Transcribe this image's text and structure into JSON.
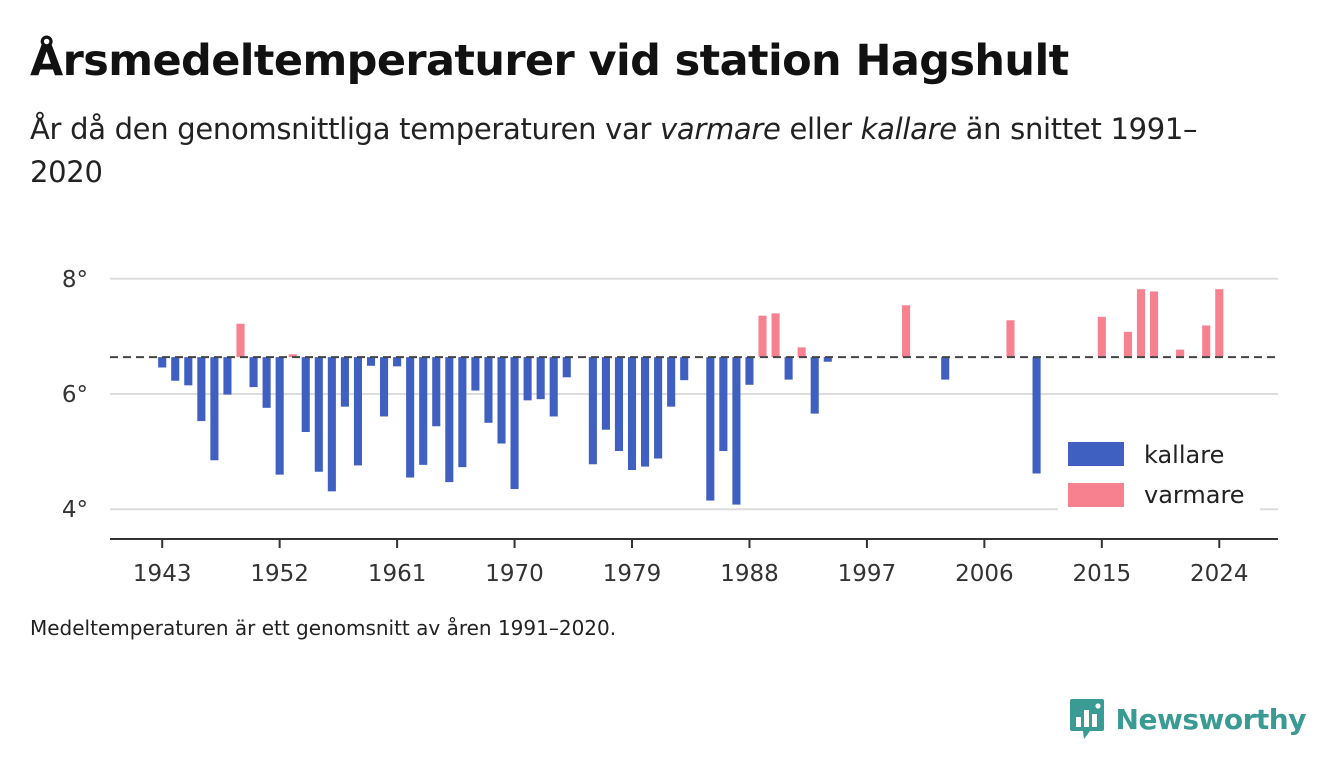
{
  "title_prefix": "Årsmedeltemperaturer vid station Hagshult",
  "subtitle": {
    "part1": "År då den genomsnittliga temperaturen var ",
    "warm_word": "varmare",
    "part2": " eller ",
    "cold_word": "kallare",
    "part3": " än snittet 1991–2020"
  },
  "footnote": "Medeltemperaturen är ett genomsnitt av åren 1991–2020.",
  "brand": "Newsworthy",
  "colors": {
    "cold": "#3f60c0",
    "warm": "#f7818f",
    "grid": "#dddddd",
    "brand": "#3a9a94"
  },
  "chart_data": {
    "type": "bar",
    "baseline": 6.64,
    "ylim": [
      3.5,
      8.5
    ],
    "yticks": [
      4,
      6,
      8
    ],
    "ytick_labels": [
      "4°",
      "6°",
      "8°"
    ],
    "xlim": [
      1939,
      2028.5
    ],
    "xticks": [
      1943,
      1952,
      1961,
      1970,
      1979,
      1988,
      1997,
      2006,
      2015,
      2024
    ],
    "xtick_labels": [
      "1943",
      "1952",
      "1961",
      "1970",
      "1979",
      "1988",
      "1997",
      "2006",
      "2015",
      "2024"
    ],
    "legend": {
      "position": "bottom-right",
      "cold_label": "kallare",
      "warm_label": "varmare"
    },
    "points": [
      {
        "x": 1943,
        "y": 6.46
      },
      {
        "x": 1944,
        "y": 6.23
      },
      {
        "x": 1945,
        "y": 6.15
      },
      {
        "x": 1946,
        "y": 5.53
      },
      {
        "x": 1947,
        "y": 4.85
      },
      {
        "x": 1948,
        "y": 5.99
      },
      {
        "x": 1949,
        "y": 7.22
      },
      {
        "x": 1950,
        "y": 6.12
      },
      {
        "x": 1951,
        "y": 5.76
      },
      {
        "x": 1952,
        "y": 4.6
      },
      {
        "x": 1953,
        "y": 6.69
      },
      {
        "x": 1954,
        "y": 5.34
      },
      {
        "x": 1955,
        "y": 4.65
      },
      {
        "x": 1956,
        "y": 4.31
      },
      {
        "x": 1957,
        "y": 5.78
      },
      {
        "x": 1958,
        "y": 4.76
      },
      {
        "x": 1959,
        "y": 6.49
      },
      {
        "x": 1960,
        "y": 5.61
      },
      {
        "x": 1961,
        "y": 6.48
      },
      {
        "x": 1962,
        "y": 4.55
      },
      {
        "x": 1963,
        "y": 4.77
      },
      {
        "x": 1964,
        "y": 5.44
      },
      {
        "x": 1965,
        "y": 4.47
      },
      {
        "x": 1966,
        "y": 4.73
      },
      {
        "x": 1967,
        "y": 6.06
      },
      {
        "x": 1968,
        "y": 5.5
      },
      {
        "x": 1969,
        "y": 5.14
      },
      {
        "x": 1970,
        "y": 4.35
      },
      {
        "x": 1971,
        "y": 5.89
      },
      {
        "x": 1972,
        "y": 5.91
      },
      {
        "x": 1973,
        "y": 5.61
      },
      {
        "x": 1974,
        "y": 6.29
      },
      {
        "x": 1976,
        "y": 4.78
      },
      {
        "x": 1977,
        "y": 5.38
      },
      {
        "x": 1978,
        "y": 5.01
      },
      {
        "x": 1979,
        "y": 4.68
      },
      {
        "x": 1980,
        "y": 4.74
      },
      {
        "x": 1981,
        "y": 4.88
      },
      {
        "x": 1982,
        "y": 5.78
      },
      {
        "x": 1983,
        "y": 6.24
      },
      {
        "x": 1985,
        "y": 4.15
      },
      {
        "x": 1986,
        "y": 5.01
      },
      {
        "x": 1987,
        "y": 4.08
      },
      {
        "x": 1988,
        "y": 6.16
      },
      {
        "x": 1989,
        "y": 7.36
      },
      {
        "x": 1990,
        "y": 7.4
      },
      {
        "x": 1991,
        "y": 6.25
      },
      {
        "x": 1992,
        "y": 6.81
      },
      {
        "x": 1993,
        "y": 5.66
      },
      {
        "x": 1994,
        "y": 6.56
      },
      {
        "x": 2000,
        "y": 7.54
      },
      {
        "x": 2003,
        "y": 6.25
      },
      {
        "x": 2008,
        "y": 7.28
      },
      {
        "x": 2010,
        "y": 4.62
      },
      {
        "x": 2015,
        "y": 7.34
      },
      {
        "x": 2017,
        "y": 7.08
      },
      {
        "x": 2018,
        "y": 7.82
      },
      {
        "x": 2019,
        "y": 7.78
      },
      {
        "x": 2021,
        "y": 6.77
      },
      {
        "x": 2023,
        "y": 7.19
      },
      {
        "x": 2024,
        "y": 7.82
      }
    ]
  }
}
